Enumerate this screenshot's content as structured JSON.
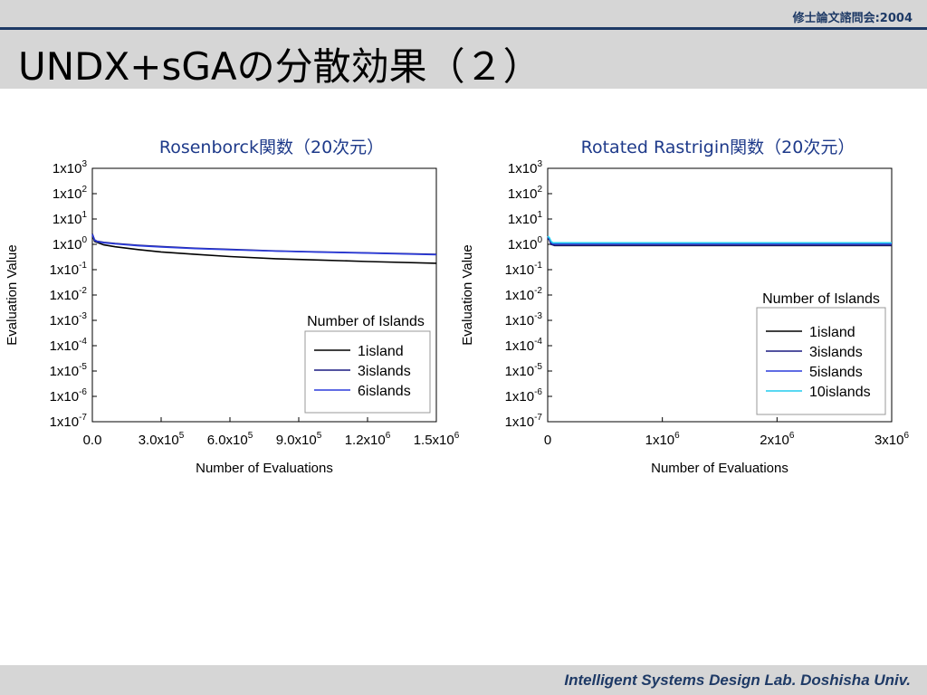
{
  "slide": {
    "header_note": "修士論文諮問会:2004",
    "title": "UNDX+sGAの分散効果（２）",
    "footer": "Intelligent Systems Design Lab. Doshisha Univ."
  },
  "chart_data": [
    {
      "type": "line",
      "title": "Rosenborck関数（20次元）",
      "xlabel": "Number of Evaluations",
      "ylabel": "Evaluation Value",
      "xlim": [
        0,
        1500000
      ],
      "ylim_log10": [
        -7,
        3
      ],
      "y_scale": "log",
      "x_ticks": [
        {
          "value": 0,
          "base": "0.0",
          "exp": ""
        },
        {
          "value": 300000,
          "base": "3.0x10",
          "exp": "5"
        },
        {
          "value": 600000,
          "base": "6.0x10",
          "exp": "5"
        },
        {
          "value": 900000,
          "base": "9.0x10",
          "exp": "5"
        },
        {
          "value": 1200000,
          "base": "1.2x10",
          "exp": "6"
        },
        {
          "value": 1500000,
          "base": "1.5x10",
          "exp": "6"
        }
      ],
      "y_ticks": [
        {
          "value": 3,
          "base": "1x10",
          "exp": "3"
        },
        {
          "value": 2,
          "base": "1x10",
          "exp": "2"
        },
        {
          "value": 1,
          "base": "1x10",
          "exp": "1"
        },
        {
          "value": 0,
          "base": "1x10",
          "exp": "0"
        },
        {
          "value": -1,
          "base": "1x10",
          "exp": "-1"
        },
        {
          "value": -2,
          "base": "1x10",
          "exp": "-2"
        },
        {
          "value": -3,
          "base": "1x10",
          "exp": "-3"
        },
        {
          "value": -4,
          "base": "1x10",
          "exp": "-4"
        },
        {
          "value": -5,
          "base": "1x10",
          "exp": "-5"
        },
        {
          "value": -6,
          "base": "1x10",
          "exp": "-6"
        },
        {
          "value": -7,
          "base": "1x10",
          "exp": "-7"
        }
      ],
      "legend": {
        "title": "Number of Islands",
        "position": "bottom-right"
      },
      "series": [
        {
          "name": "1island",
          "color": "#000000",
          "x": [
            0,
            10000,
            20000,
            50000,
            100000,
            200000,
            300000,
            450000,
            600000,
            800000,
            1000000,
            1200000,
            1500000
          ],
          "y": [
            2.3,
            1.3,
            1.2,
            0.95,
            0.8,
            0.62,
            0.5,
            0.4,
            0.33,
            0.27,
            0.24,
            0.21,
            0.18
          ]
        },
        {
          "name": "3islands",
          "color": "#1a1a80",
          "x": [
            0,
            10000,
            20000,
            50000,
            100000,
            200000,
            300000,
            450000,
            600000,
            800000,
            1000000,
            1200000,
            1500000
          ],
          "y": [
            2.6,
            1.5,
            1.32,
            1.2,
            1.08,
            0.92,
            0.82,
            0.7,
            0.63,
            0.55,
            0.5,
            0.46,
            0.4
          ]
        },
        {
          "name": "6islands",
          "color": "#2b3bdb",
          "x": [
            0,
            10000,
            20000,
            50000,
            100000,
            200000,
            300000,
            450000,
            600000,
            800000,
            1000000,
            1200000,
            1500000
          ],
          "y": [
            2.4,
            1.42,
            1.28,
            1.15,
            1.04,
            0.88,
            0.78,
            0.68,
            0.61,
            0.54,
            0.49,
            0.45,
            0.39
          ]
        }
      ]
    },
    {
      "type": "line",
      "title": "Rotated Rastrigin関数（20次元）",
      "xlabel": "Number of Evaluations",
      "ylabel": "Evaluation Value",
      "xlim": [
        0,
        3000000
      ],
      "ylim_log10": [
        -7,
        3
      ],
      "y_scale": "log",
      "x_ticks": [
        {
          "value": 0,
          "base": "0",
          "exp": ""
        },
        {
          "value": 1000000,
          "base": "1x10",
          "exp": "6"
        },
        {
          "value": 2000000,
          "base": "2x10",
          "exp": "6"
        },
        {
          "value": 3000000,
          "base": "3x10",
          "exp": "6"
        }
      ],
      "y_ticks": [
        {
          "value": 3,
          "base": "1x10",
          "exp": "3"
        },
        {
          "value": 2,
          "base": "1x10",
          "exp": "2"
        },
        {
          "value": 1,
          "base": "1x10",
          "exp": "1"
        },
        {
          "value": 0,
          "base": "1x10",
          "exp": "0"
        },
        {
          "value": -1,
          "base": "1x10",
          "exp": "-1"
        },
        {
          "value": -2,
          "base": "1x10",
          "exp": "-2"
        },
        {
          "value": -3,
          "base": "1x10",
          "exp": "-3"
        },
        {
          "value": -4,
          "base": "1x10",
          "exp": "-4"
        },
        {
          "value": -5,
          "base": "1x10",
          "exp": "-5"
        },
        {
          "value": -6,
          "base": "1x10",
          "exp": "-6"
        },
        {
          "value": -7,
          "base": "1x10",
          "exp": "-7"
        }
      ],
      "legend": {
        "title": "Number of Islands",
        "position": "right"
      },
      "series": [
        {
          "name": "1island",
          "color": "#000000",
          "x": [
            0,
            15000,
            30000,
            45000,
            60000,
            3000000
          ],
          "y": [
            1.9,
            1.6,
            1.0,
            0.95,
            0.9,
            0.9
          ]
        },
        {
          "name": "3islands",
          "color": "#1a1a80",
          "x": [
            0,
            15000,
            30000,
            45000,
            60000,
            3000000
          ],
          "y": [
            1.8,
            1.5,
            1.0,
            0.95,
            0.92,
            0.92
          ]
        },
        {
          "name": "5islands",
          "color": "#2b3bdb",
          "x": [
            0,
            15000,
            30000,
            45000,
            60000,
            3000000
          ],
          "y": [
            2.0,
            1.7,
            1.2,
            1.05,
            1.05,
            1.05
          ]
        },
        {
          "name": "10islands",
          "color": "#22ccee",
          "x": [
            0,
            15000,
            30000,
            45000,
            60000,
            3000000
          ],
          "y": [
            2.1,
            1.8,
            1.3,
            1.15,
            1.15,
            1.15
          ]
        }
      ]
    }
  ]
}
